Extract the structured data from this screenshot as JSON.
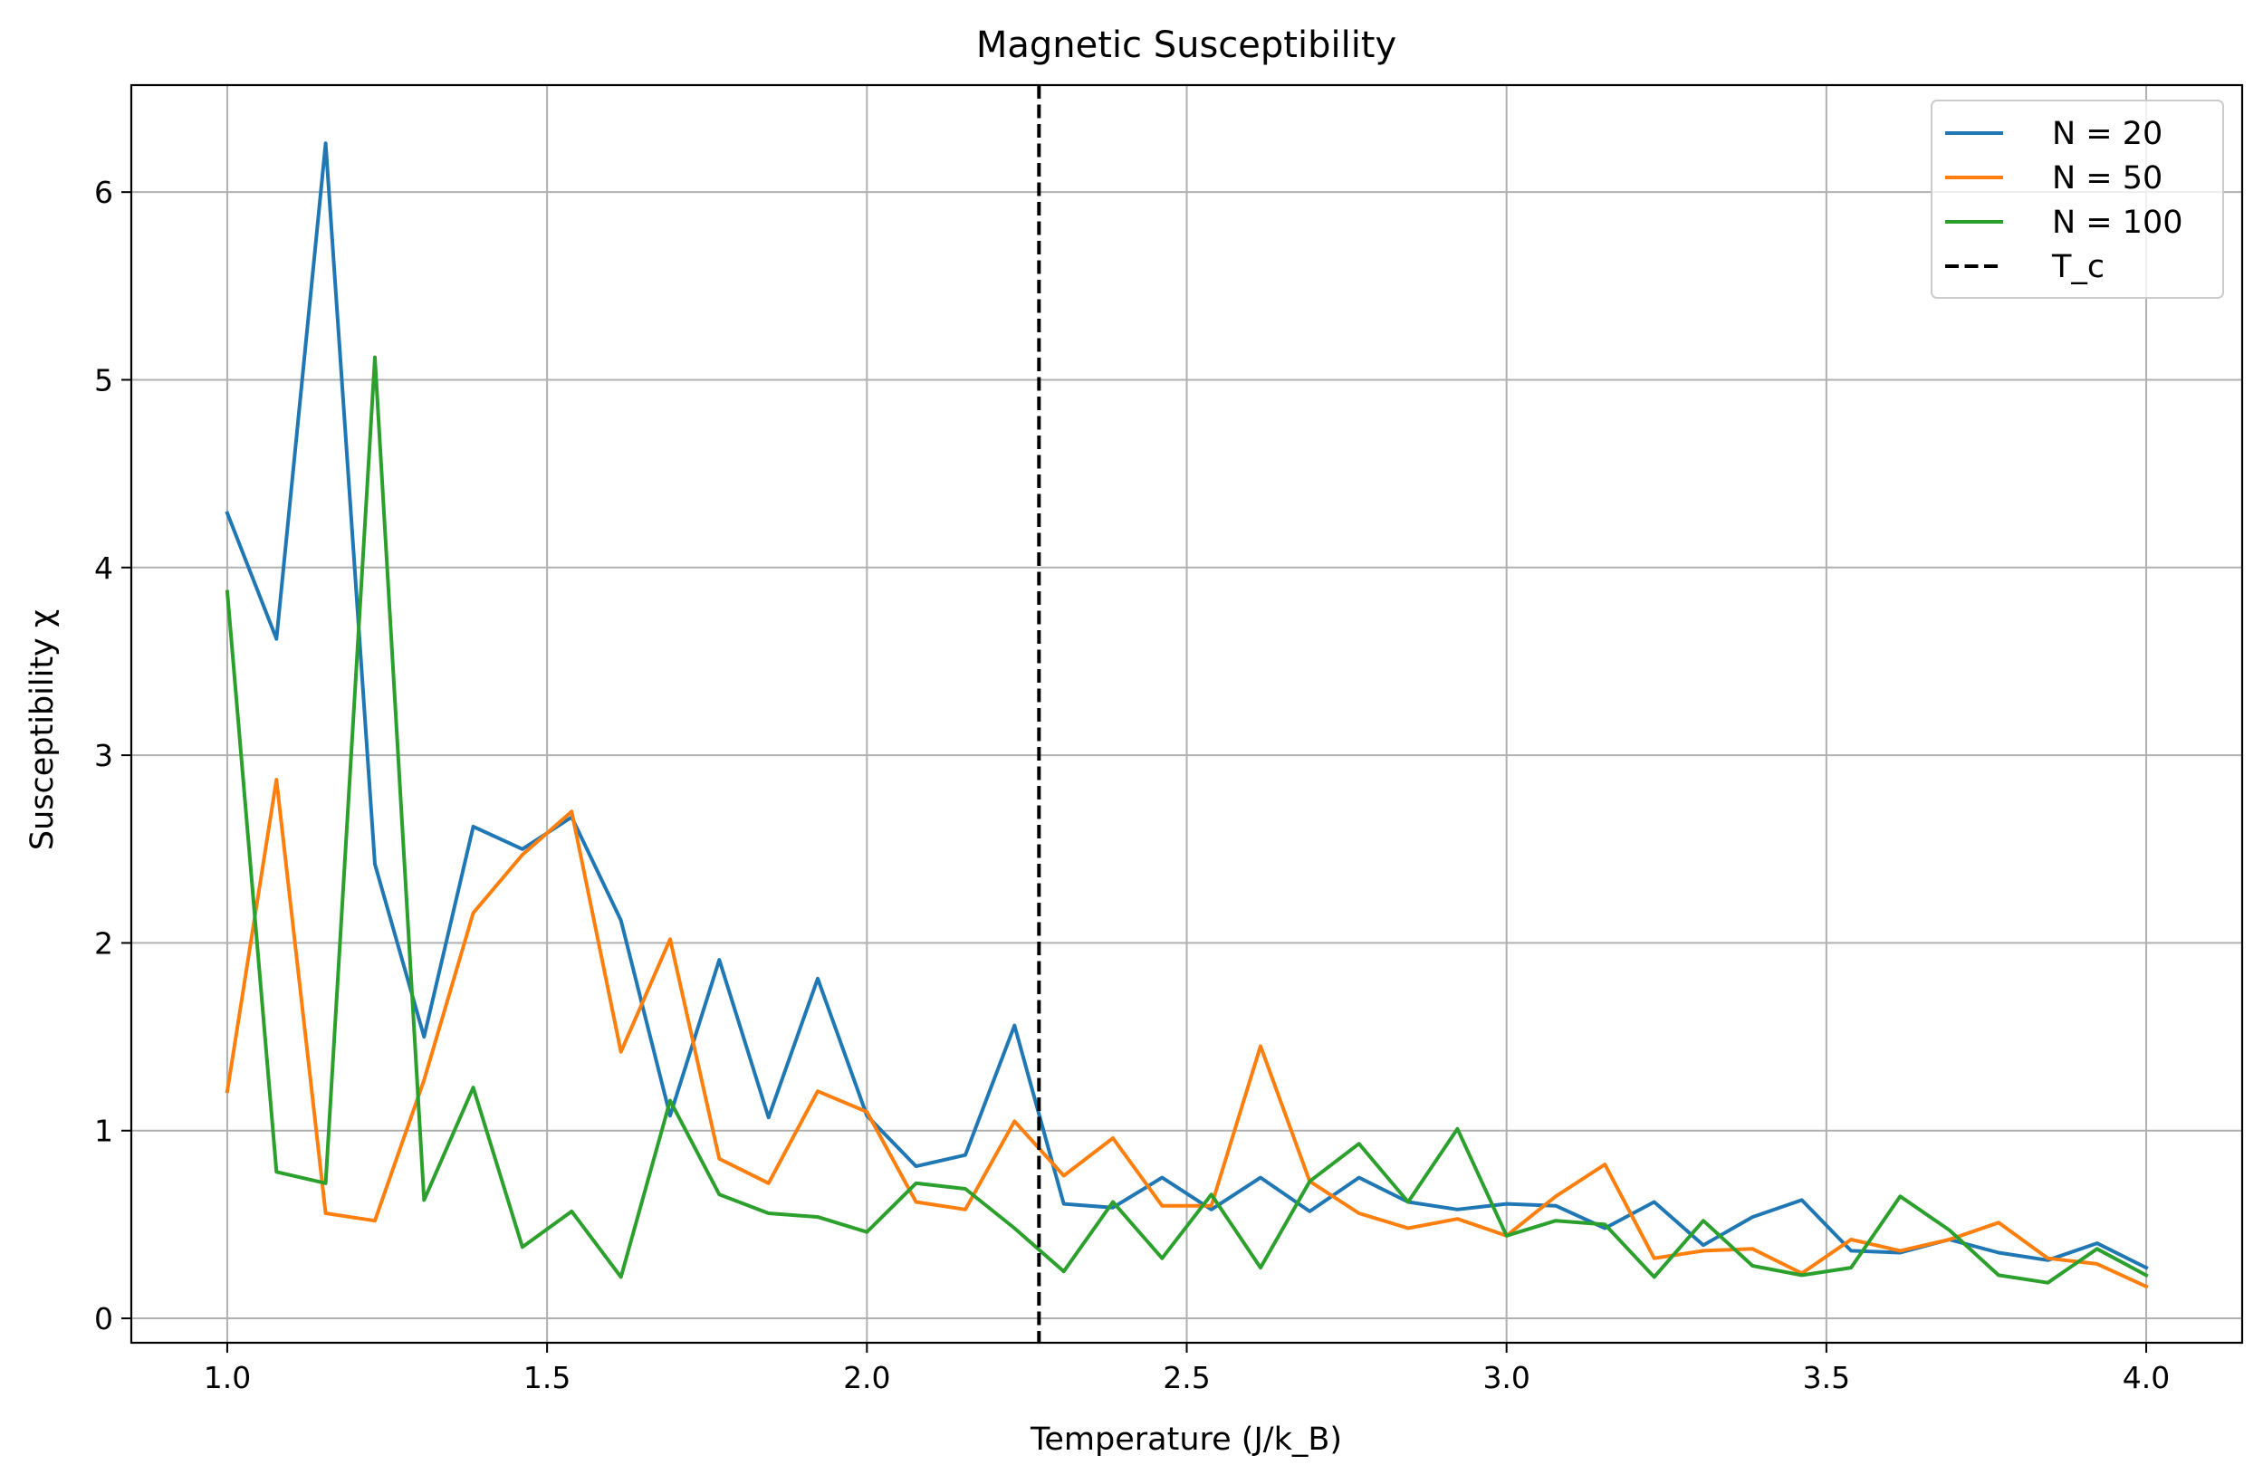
{
  "chart_data": {
    "type": "line",
    "title": "Magnetic Susceptibility",
    "xlabel": "Temperature (J/k_B)",
    "ylabel": "Susceptibility χ",
    "xlim": [
      0.85,
      4.15
    ],
    "ylim": [
      -0.13,
      6.57
    ],
    "xticks": [
      1.0,
      1.5,
      2.0,
      2.5,
      3.0,
      3.5,
      4.0
    ],
    "xtick_labels": [
      "1.0",
      "1.5",
      "2.0",
      "2.5",
      "3.0",
      "3.5",
      "4.0"
    ],
    "yticks": [
      0,
      1,
      2,
      3,
      4,
      5,
      6
    ],
    "ytick_labels": [
      "0",
      "1",
      "2",
      "3",
      "4",
      "5",
      "6"
    ],
    "grid": true,
    "legend_position": "top-right",
    "x": [
      1.0,
      1.0769,
      1.1538,
      1.2308,
      1.3077,
      1.3846,
      1.4615,
      1.5385,
      1.6154,
      1.6923,
      1.7692,
      1.8462,
      1.9231,
      2.0,
      2.0769,
      2.1538,
      2.2308,
      2.3077,
      2.3846,
      2.4615,
      2.5385,
      2.6154,
      2.6923,
      2.7692,
      2.8462,
      2.9231,
      3.0,
      3.0769,
      3.1538,
      3.2308,
      3.3077,
      3.3846,
      3.4615,
      3.5385,
      3.6154,
      3.6923,
      3.7692,
      3.8462,
      3.9231,
      4.0
    ],
    "series": [
      {
        "name": "N = 20",
        "color": "#1f77b4",
        "values": [
          4.29,
          3.62,
          6.26,
          2.42,
          1.5,
          2.62,
          2.5,
          2.67,
          2.12,
          1.08,
          1.91,
          1.07,
          1.81,
          1.08,
          0.81,
          0.87,
          1.56,
          0.61,
          0.59,
          0.75,
          0.58,
          0.75,
          0.57,
          0.75,
          0.62,
          0.58,
          0.61,
          0.6,
          0.48,
          0.62,
          0.39,
          0.54,
          0.63,
          0.36,
          0.35,
          0.42,
          0.35,
          0.31,
          0.4,
          0.27
        ]
      },
      {
        "name": "N = 50",
        "color": "#ff7f0e",
        "values": [
          1.21,
          2.87,
          0.56,
          0.52,
          1.27,
          2.16,
          2.47,
          2.7,
          1.42,
          2.02,
          0.85,
          0.72,
          1.21,
          1.1,
          0.62,
          0.58,
          1.05,
          0.76,
          0.96,
          0.6,
          0.6,
          1.45,
          0.73,
          0.56,
          0.48,
          0.53,
          0.44,
          0.65,
          0.82,
          0.32,
          0.36,
          0.37,
          0.24,
          0.42,
          0.36,
          0.42,
          0.51,
          0.32,
          0.29,
          0.17
        ]
      },
      {
        "name": "N = 100",
        "color": "#2ca02c",
        "values": [
          3.87,
          0.78,
          0.72,
          5.12,
          0.63,
          1.23,
          0.38,
          0.57,
          0.22,
          1.16,
          0.66,
          0.56,
          0.54,
          0.46,
          0.72,
          0.69,
          0.48,
          0.25,
          0.62,
          0.32,
          0.66,
          0.27,
          0.73,
          0.93,
          0.62,
          1.01,
          0.44,
          0.52,
          0.5,
          0.22,
          0.52,
          0.28,
          0.23,
          0.27,
          0.65,
          0.47,
          0.23,
          0.19,
          0.37,
          0.23
        ]
      }
    ],
    "reference_lines": [
      {
        "name": "T_c",
        "x": 2.269,
        "color": "#000000",
        "style": "dashed"
      }
    ]
  }
}
